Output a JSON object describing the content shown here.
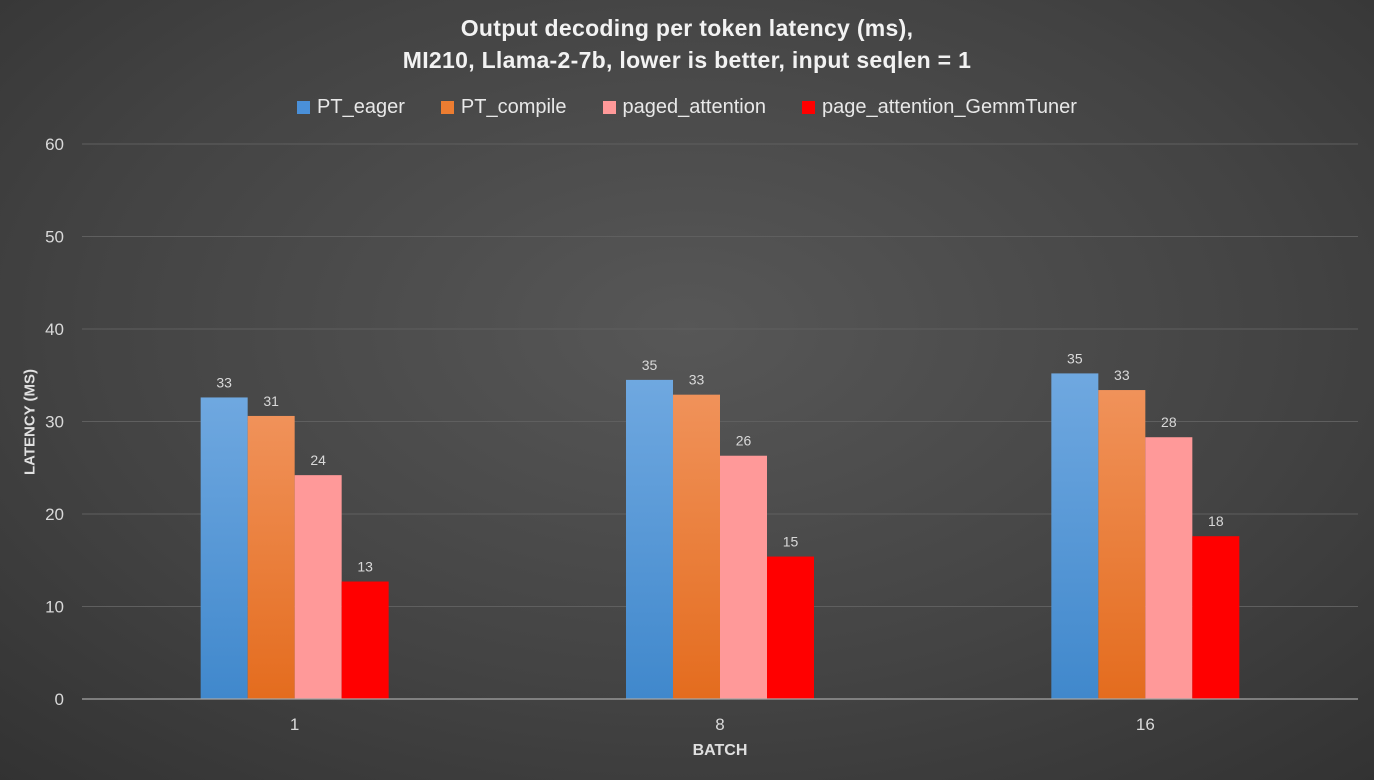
{
  "chart_data": {
    "type": "bar",
    "title_lines": [
      "Output decoding per token latency (ms),",
      "MI210, Llama-2-7b, lower is better, input seqlen = 1"
    ],
    "xlabel": "BATCH",
    "ylabel": "LATENCY (MS)",
    "categories": [
      "1",
      "8",
      "16"
    ],
    "ylim": [
      0,
      60
    ],
    "yticks": [
      0,
      10,
      20,
      30,
      40,
      50,
      60
    ],
    "grid": true,
    "legend_position": "top",
    "series": [
      {
        "name": "PT_eager",
        "values": [
          32.6,
          34.5,
          35.2
        ],
        "labels": [
          "33",
          "35",
          "35"
        ],
        "color": "#4a90d9",
        "color_top": "#6fa8e0",
        "color_bottom": "#4088cc"
      },
      {
        "name": "PT_compile",
        "values": [
          30.6,
          32.9,
          33.4
        ],
        "labels": [
          "31",
          "33",
          "33"
        ],
        "color": "#ed7d31",
        "color_top": "#f0925a",
        "color_bottom": "#e46c1e"
      },
      {
        "name": "paged_attention",
        "values": [
          24.2,
          26.3,
          28.3
        ],
        "labels": [
          "24",
          "26",
          "28"
        ],
        "color": "#ff9999",
        "color_top": "#ff9999",
        "color_bottom": "#ff9999"
      },
      {
        "name": "page_attention_GemmTuner",
        "values": [
          12.7,
          15.4,
          17.6
        ],
        "labels": [
          "13",
          "15",
          "18"
        ],
        "color": "#ff0000",
        "color_top": "#ff0000",
        "color_bottom": "#ff0000"
      }
    ]
  }
}
